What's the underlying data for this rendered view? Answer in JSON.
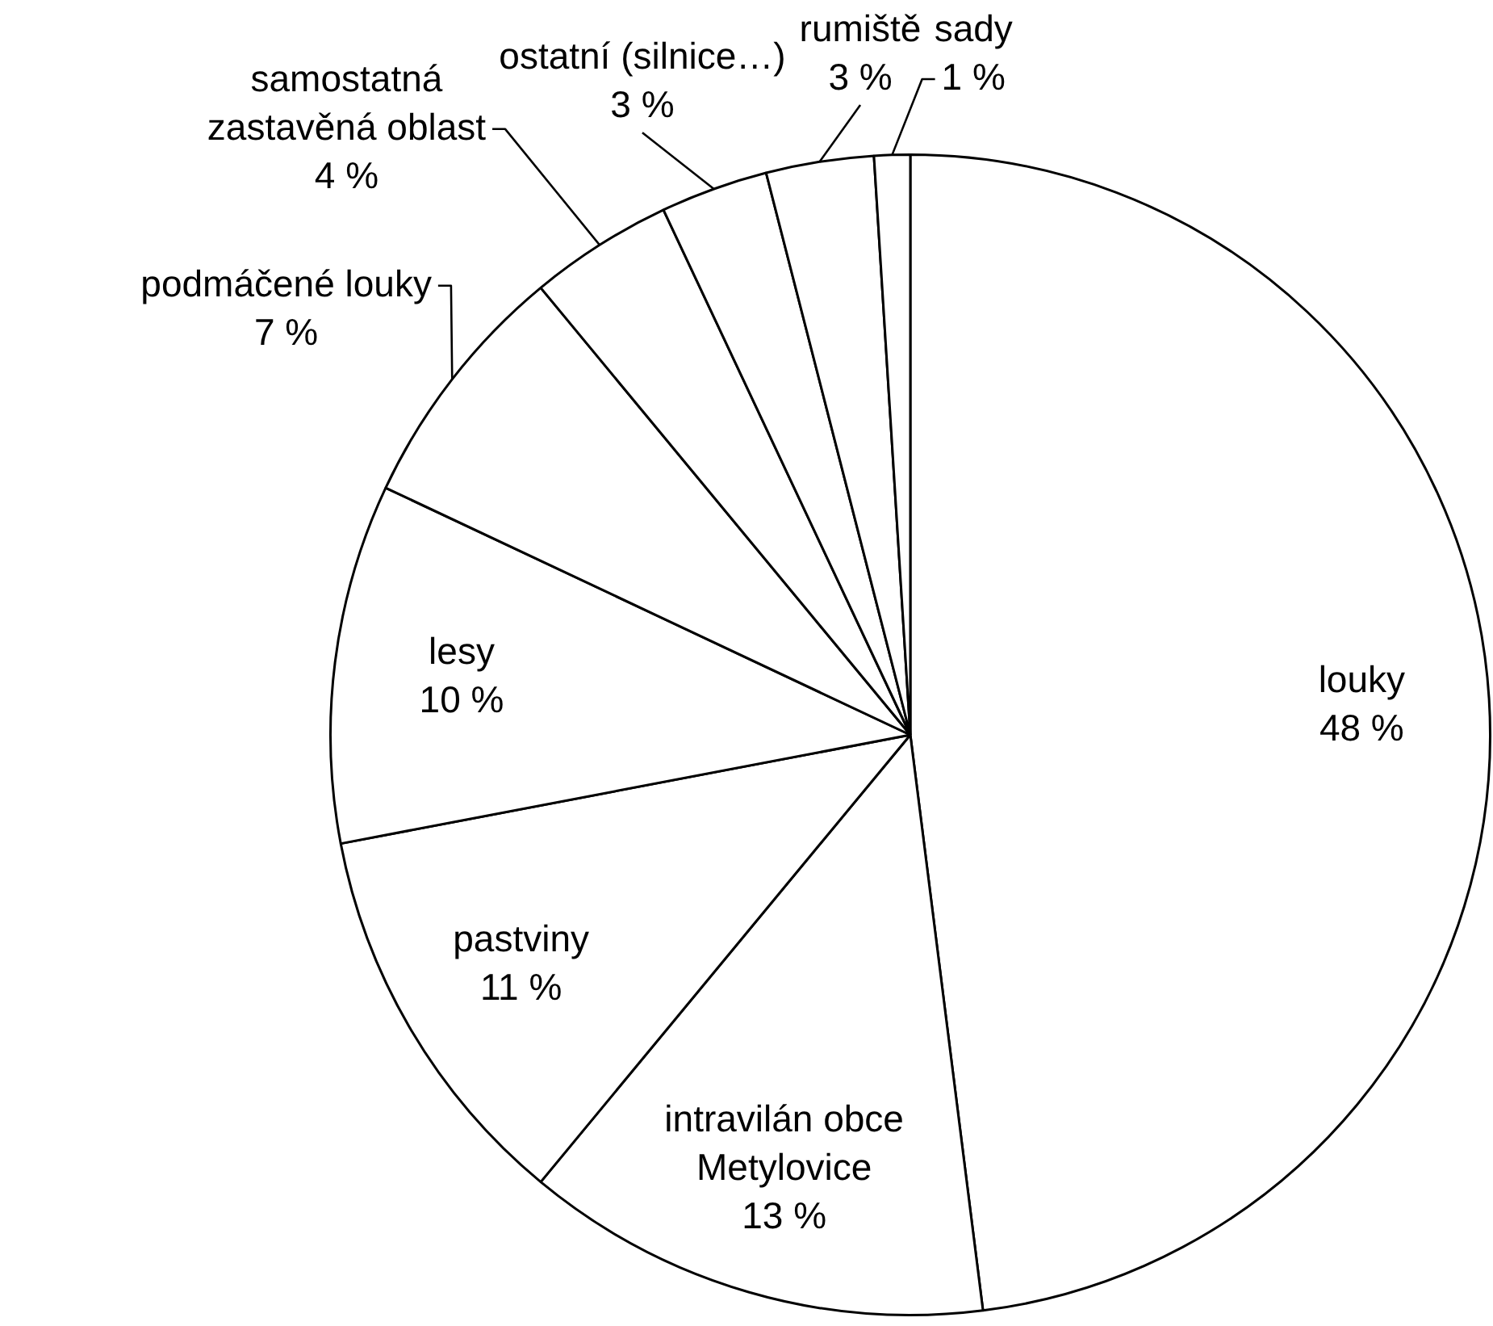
{
  "chart_data": {
    "type": "pie",
    "categories": [
      "louky",
      "intravilán obce Metylovice",
      "pastviny",
      "lesy",
      "podmáčené louky",
      "samostatná zastavěná oblast",
      "ostatní (silnice…)",
      "rumiště",
      "sady"
    ],
    "values": [
      48,
      13,
      11,
      10,
      7,
      4,
      3,
      3,
      1
    ],
    "colors": [
      "#ffffff",
      "#ffffff",
      "#ffffff",
      "#ffffff",
      "#ffffff",
      "#ffffff",
      "#ffffff",
      "#ffffff",
      "#ffffff"
    ],
    "value_labels": [
      "48 %",
      "13 %",
      "11 %",
      "10 %",
      "7 %",
      "4 %",
      "3 %",
      "3 %",
      "1 %"
    ],
    "legend": false
  }
}
